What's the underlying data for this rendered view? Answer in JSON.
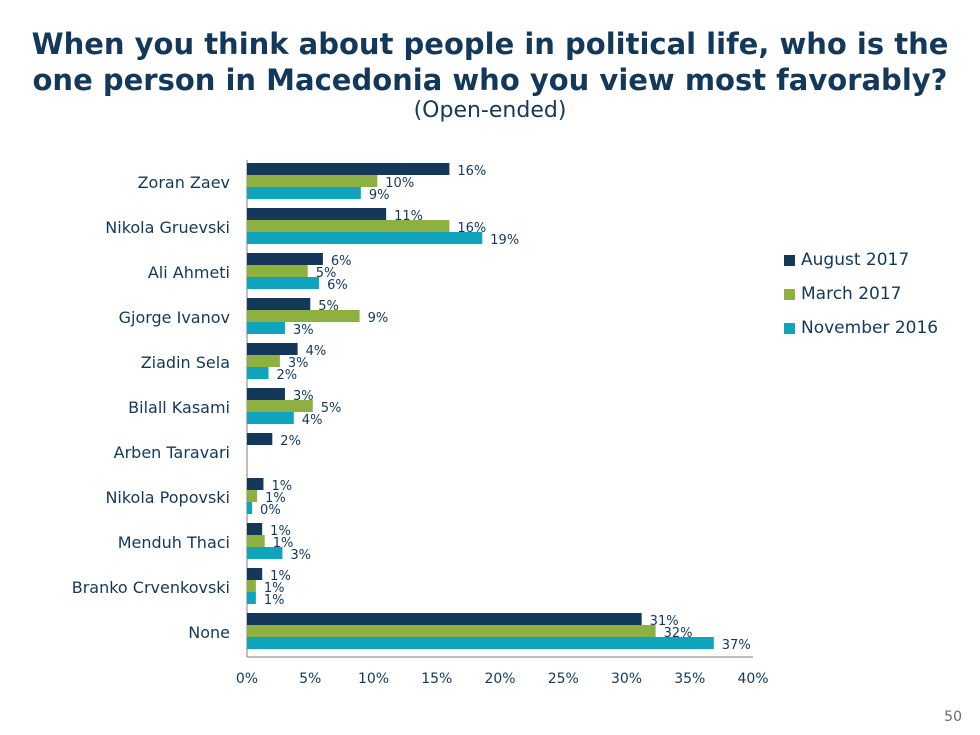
{
  "title_line1": "When you think about people in political life, who is the",
  "title_line2": "one person in Macedonia who you view most favorably?",
  "subtitle": "(Open-ended)",
  "page_number": "50",
  "colors": {
    "August 2017": "#14385a",
    "March 2017": "#8db041",
    "November 2016": "#0fa3bc",
    "text": "#14385a"
  },
  "chart_data": {
    "type": "bar",
    "orientation": "horizontal",
    "categories": [
      "Zoran Zaev",
      "Nikola Gruevski",
      "Ali Ahmeti",
      "Gjorge Ivanov",
      "Ziadin Sela",
      "Bilall Kasami",
      "Arben Taravari",
      "Nikola Popovski",
      "Menduh Thaci",
      "Branko Crvenkovski",
      "None"
    ],
    "series": [
      {
        "name": "August 2017",
        "values": [
          16,
          11,
          6,
          5,
          4,
          3,
          2,
          1,
          1,
          1,
          31
        ]
      },
      {
        "name": "March 2017",
        "values": [
          10,
          16,
          5,
          9,
          3,
          5,
          null,
          1,
          1,
          1,
          32
        ]
      },
      {
        "name": "November 2016",
        "values": [
          9,
          19,
          6,
          3,
          2,
          4,
          null,
          0,
          3,
          1,
          37
        ]
      }
    ],
    "display_values": [
      [
        16,
        11,
        6,
        5,
        4,
        3,
        2,
        1.3,
        1.2,
        1.2,
        31.2
      ],
      [
        10.3,
        16,
        4.8,
        8.9,
        2.6,
        5.2,
        null,
        0.8,
        1.4,
        0.7,
        32.3
      ],
      [
        9,
        18.6,
        5.7,
        3,
        1.7,
        3.7,
        null,
        0.4,
        2.8,
        0.7,
        36.9
      ]
    ],
    "value_labels": [
      [
        "16%",
        "11%",
        "6%",
        "5%",
        "4%",
        "3%",
        "2%",
        "1%",
        "1%",
        "1%",
        "31%"
      ],
      [
        "10%",
        "16%",
        "5%",
        "9%",
        "3%",
        "5%",
        "",
        "1%",
        "1%",
        "1%",
        "32%"
      ],
      [
        "9%",
        "19%",
        "6%",
        "3%",
        "2%",
        "4%",
        "",
        "0%",
        "3%",
        "1%",
        "37%"
      ]
    ],
    "x_ticks": [
      "0%",
      "5%",
      "10%",
      "15%",
      "20%",
      "25%",
      "30%",
      "35%",
      "40%"
    ],
    "xlim": [
      0,
      40
    ],
    "legend_position": "right",
    "grid": false
  }
}
